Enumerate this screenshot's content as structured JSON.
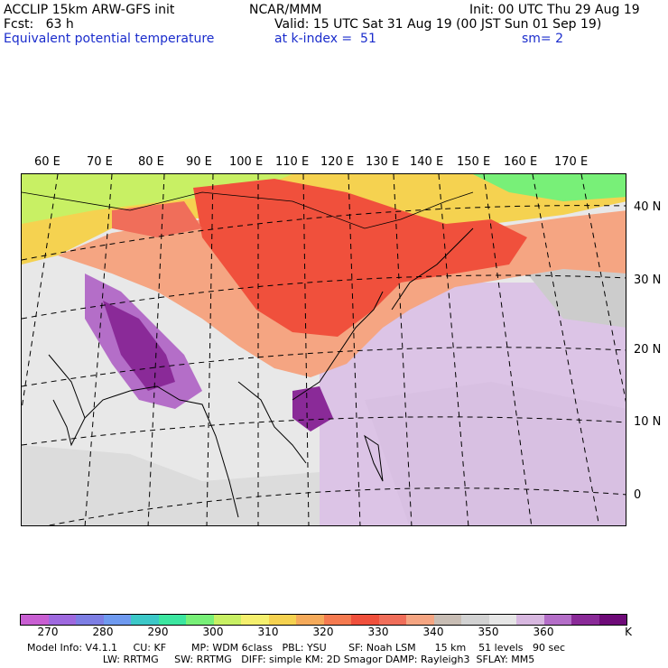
{
  "header": {
    "line1_left": "ACCLIP 15km ARW-GFS init",
    "line1_center": "NCAR/MMM",
    "line1_right": "Init: 00 UTC Thu 29 Aug 19",
    "line2_left": "Fcst:   63 h",
    "line2_right": "Valid: 15 UTC Sat 31 Aug 19 (00 JST Sun 01 Sep 19)",
    "line3_left": "Equivalent potential temperature",
    "line3_center": "at k-index =  51",
    "line3_right": "sm= 2"
  },
  "map": {
    "longitude_labels": [
      "60 E",
      "70 E",
      "80 E",
      "90 E",
      "100 E",
      "110 E",
      "120 E",
      "130 E",
      "140 E",
      "150 E",
      "160 E",
      "170 E"
    ],
    "latitude_labels": [
      "40 N",
      "30 N",
      "20 N",
      "10 N",
      "0"
    ],
    "region": "South / East Asia and Western Pacific",
    "colors": {
      "high_theta": "#f0503c",
      "mid_theta": "#f5a582",
      "low_north": "#f5d250",
      "tropical_low": "#d8b8e0",
      "ocean_grey": "#e8e8e8",
      "deep_purple": "#8a2a98"
    }
  },
  "colorbar": {
    "colors": [
      "#c85ed2",
      "#9e69df",
      "#7d7ee4",
      "#6f9af0",
      "#3cc8c8",
      "#3ce6a0",
      "#78f078",
      "#c8f064",
      "#f5f06e",
      "#f5d250",
      "#f5aa5a",
      "#f57a50",
      "#f0503c",
      "#f06e5a",
      "#f5a582",
      "#c8bdb4",
      "#d2d2d2",
      "#e6e6e6",
      "#d8b8e0",
      "#b46ec8",
      "#8a2a98",
      "#6e0a78"
    ],
    "ticks": [
      "270",
      "280",
      "290",
      "300",
      "310",
      "320",
      "330",
      "340",
      "350",
      "360"
    ],
    "unit": "K"
  },
  "footer": {
    "line1": "Model Info: V4.1.1     CU: KF        MP: WDM 6class   PBL: YSU       SF: Noah LSM      15 km    51 levels   90 sec",
    "line2": "                        LW: RRTMG     SW: RRTMG   DIFF: simple KM: 2D Smagor DAMP: Rayleigh3  SFLAY: MM5"
  }
}
